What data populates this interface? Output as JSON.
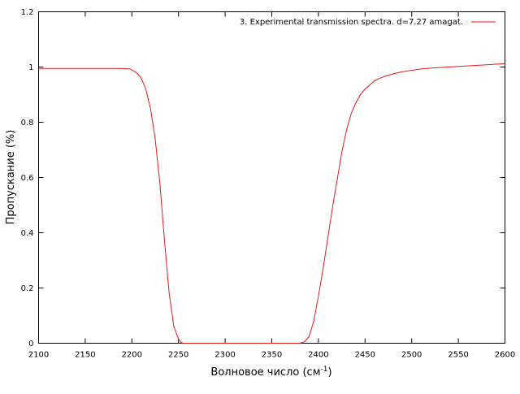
{
  "chart_data": {
    "type": "line",
    "xlabel": "Волновое число (см",
    "xlabel_sup": "-1",
    "xlabel_suffix": ")",
    "ylabel": "Пропускание (%)",
    "xlim": [
      2100,
      2600
    ],
    "ylim": [
      0,
      1.2
    ],
    "x_ticks": [
      2100,
      2150,
      2200,
      2250,
      2300,
      2350,
      2400,
      2450,
      2500,
      2550,
      2600
    ],
    "y_ticks": [
      0,
      0.2,
      0.4,
      0.6,
      0.8,
      1,
      1.2
    ],
    "x_tick_labels": [
      "2100",
      "2150",
      "2200",
      "2250",
      "2300",
      "2350",
      "2400",
      "2450",
      "2500",
      "2550",
      "2600"
    ],
    "y_tick_labels": [
      "0",
      "0.2",
      "0.4",
      "0.6",
      "0.8",
      "1",
      "1.2"
    ],
    "grid": false,
    "legend_position": "top-right",
    "series": [
      {
        "name": "3. Experimental transmission spectra. d=7.27 amagat.",
        "color": "#e41a1c",
        "x": [
          2100,
          2150,
          2190,
          2198,
          2205,
          2210,
          2215,
          2220,
          2225,
          2230,
          2235,
          2240,
          2245,
          2250,
          2253,
          2255,
          2260,
          2300,
          2350,
          2380,
          2385,
          2390,
          2395,
          2400,
          2405,
          2410,
          2415,
          2420,
          2425,
          2430,
          2435,
          2440,
          2445,
          2450,
          2455,
          2460,
          2465,
          2470,
          2480,
          2490,
          2500,
          2510,
          2520,
          2540,
          2560,
          2580,
          2600
        ],
        "y": [
          0.995,
          0.995,
          0.995,
          0.993,
          0.98,
          0.96,
          0.92,
          0.85,
          0.74,
          0.58,
          0.37,
          0.18,
          0.06,
          0.015,
          0.003,
          0,
          0,
          0,
          0,
          0,
          0.005,
          0.025,
          0.08,
          0.17,
          0.27,
          0.38,
          0.49,
          0.59,
          0.69,
          0.77,
          0.83,
          0.87,
          0.9,
          0.92,
          0.935,
          0.95,
          0.958,
          0.965,
          0.975,
          0.983,
          0.988,
          0.993,
          0.996,
          1.0,
          1.004,
          1.008,
          1.012
        ]
      }
    ]
  }
}
